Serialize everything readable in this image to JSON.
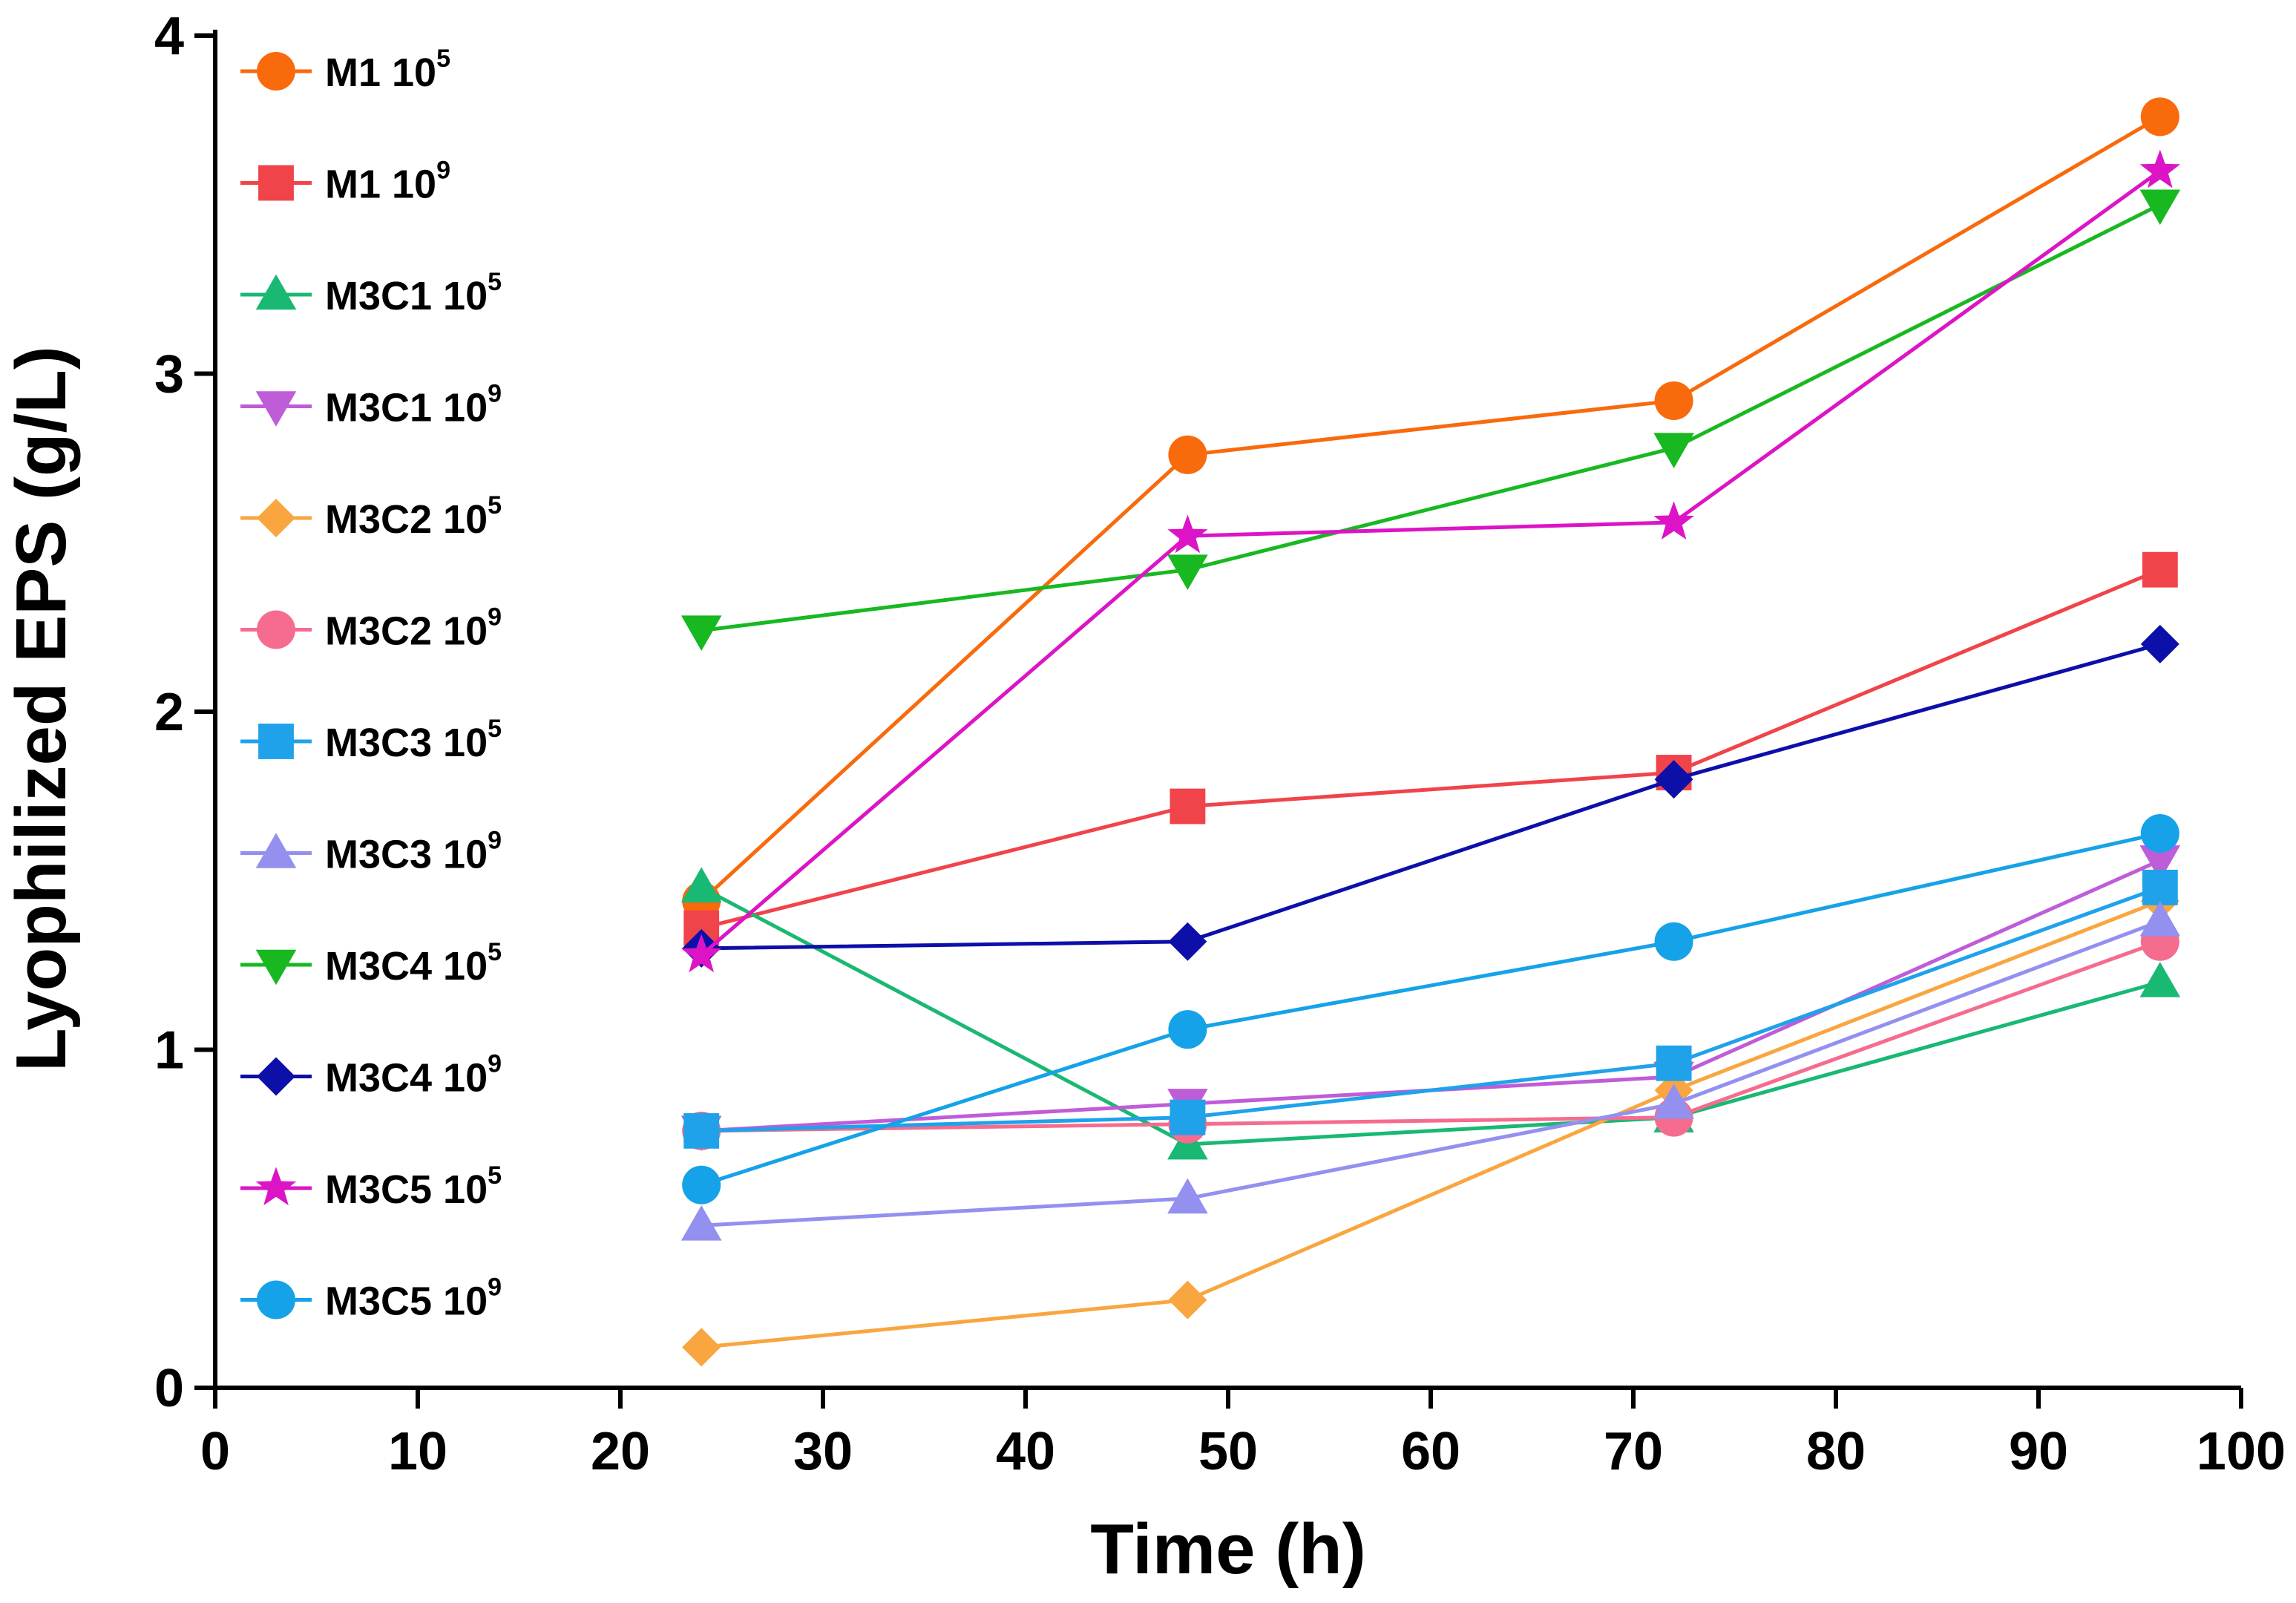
{
  "chart_data": {
    "type": "line",
    "title": "",
    "xlabel": "Time (h)",
    "ylabel": "Lyophilized EPS (g/L)",
    "xlim": [
      0,
      100
    ],
    "ylim": [
      0,
      4
    ],
    "xticks": [
      0,
      10,
      20,
      30,
      40,
      50,
      60,
      70,
      80,
      90,
      100
    ],
    "yticks": [
      0,
      1,
      2,
      3,
      4
    ],
    "grid": false,
    "legend_position": "top-left",
    "x": [
      24,
      48,
      72,
      96
    ],
    "series": [
      {
        "name": "M1 10",
        "sup": "5",
        "marker": "circle",
        "color": "#F86A0C",
        "values": [
          1.44,
          2.76,
          2.92,
          3.76
        ]
      },
      {
        "name": "M1 10",
        "sup": "9",
        "marker": "square",
        "color": "#F0444A",
        "values": [
          1.36,
          1.72,
          1.82,
          2.42
        ]
      },
      {
        "name": "M3C1 10",
        "sup": "5",
        "marker": "triangle-up",
        "color": "#19B873",
        "values": [
          1.48,
          0.72,
          0.8,
          1.2
        ]
      },
      {
        "name": "M3C1 10",
        "sup": "9",
        "marker": "triangle-down",
        "color": "#BF5CD8",
        "values": [
          0.76,
          0.84,
          0.92,
          1.56
        ]
      },
      {
        "name": "M3C2 10",
        "sup": "5",
        "marker": "diamond",
        "color": "#F9A640",
        "values": [
          0.12,
          0.26,
          0.88,
          1.44
        ]
      },
      {
        "name": "M3C2 10",
        "sup": "9",
        "marker": "circle",
        "color": "#F56C8E",
        "values": [
          0.76,
          0.78,
          0.8,
          1.32
        ]
      },
      {
        "name": "M3C3 10",
        "sup": "5",
        "marker": "square",
        "color": "#1FA2EA",
        "values": [
          0.76,
          0.8,
          0.96,
          1.48
        ]
      },
      {
        "name": "M3C3 10",
        "sup": "9",
        "marker": "triangle-up",
        "color": "#9390F0",
        "values": [
          0.48,
          0.56,
          0.84,
          1.38
        ]
      },
      {
        "name": "M3C4 10",
        "sup": "5",
        "marker": "triangle-down",
        "color": "#18B821",
        "values": [
          2.24,
          2.42,
          2.78,
          3.5
        ]
      },
      {
        "name": "M3C4 10",
        "sup": "9",
        "marker": "diamond",
        "color": "#0C0FA8",
        "values": [
          1.3,
          1.32,
          1.8,
          2.2
        ]
      },
      {
        "name": "M3C5 10",
        "sup": "5",
        "marker": "star",
        "color": "#DC14C6",
        "values": [
          1.28,
          2.52,
          2.56,
          3.6
        ]
      },
      {
        "name": "M3C5 10",
        "sup": "9",
        "marker": "circle",
        "color": "#15A2E8",
        "values": [
          0.6,
          1.06,
          1.32,
          1.64
        ]
      }
    ]
  }
}
